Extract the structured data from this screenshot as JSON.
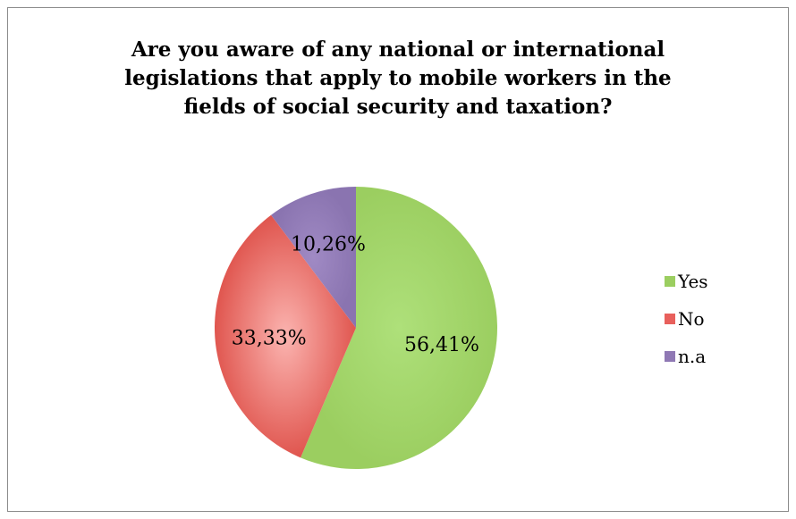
{
  "chart_data": {
    "type": "pie",
    "title": "Are you aware of any national or international legislations that apply to mobile workers in the fields of social security and taxation?",
    "title_lines": [
      "Are you aware of any national or international",
      "legislations that apply to mobile workers in the",
      "fields of social security and taxation?"
    ],
    "categories": [
      "Yes",
      "No",
      "n.a"
    ],
    "values": [
      56.41,
      33.33,
      10.26
    ],
    "data_labels": [
      "56,41%",
      "33,33%",
      "10,26%"
    ],
    "colors": [
      "#9bce60",
      "#e8605c",
      "#8f78b4"
    ],
    "legend_position": "right"
  }
}
